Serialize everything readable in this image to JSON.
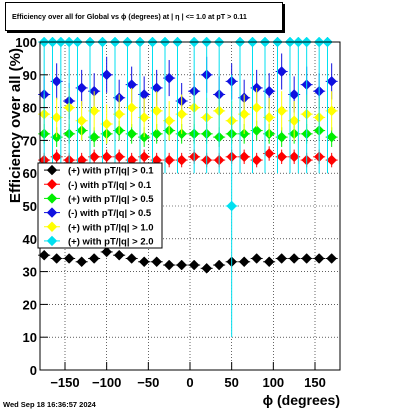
{
  "footer_timestamp": "Wed Sep 18 16:36:57 2024",
  "chart_data": {
    "type": "scatter",
    "title": "Efficiency over all for Global vs ϕ (degrees) at | η | <= 1.0 at pT > 0.11",
    "xlabel": "ϕ (degrees)",
    "ylabel": "Efficiency over all (%)",
    "xlim": [
      -180,
      180
    ],
    "ylim": [
      0,
      100
    ],
    "xticks": [
      -150,
      -100,
      -50,
      0,
      50,
      100,
      150
    ],
    "xtick_labels": [
      "−150",
      "−100",
      "−50",
      "0",
      "50",
      "100",
      "150"
    ],
    "yticks": [
      0,
      10,
      20,
      30,
      40,
      50,
      60,
      70,
      80,
      90,
      100
    ],
    "grid": true,
    "legend_position": "center-left",
    "series": [
      {
        "name": "(+) with pT/|q| > 0.1",
        "color": "#000000",
        "marker": "diamond",
        "x": [
          -175,
          -160,
          -145,
          -130,
          -115,
          -100,
          -85,
          -70,
          -55,
          -40,
          -25,
          -10,
          5,
          20,
          35,
          50,
          65,
          80,
          95,
          110,
          125,
          140,
          155,
          170
        ],
        "y": [
          35,
          34,
          34,
          33,
          34,
          36,
          35,
          34,
          33,
          33,
          32,
          32,
          32,
          31,
          32,
          33,
          33,
          34,
          33,
          34,
          34,
          34,
          34,
          34
        ],
        "err": 1.3
      },
      {
        "name": "(-) with pT/|q| > 0.1",
        "color": "#ff0000",
        "marker": "diamond",
        "x": [
          -175,
          -160,
          -145,
          -130,
          -115,
          -100,
          -85,
          -70,
          -55,
          -40,
          -25,
          -10,
          5,
          20,
          35,
          50,
          65,
          80,
          95,
          110,
          125,
          140,
          155,
          170
        ],
        "y": [
          64,
          65,
          64,
          64,
          65,
          65,
          65,
          64,
          65,
          64,
          64,
          64,
          65,
          64,
          64,
          65,
          65,
          64,
          66,
          65,
          65,
          64,
          65,
          64
        ],
        "err": 2.2
      },
      {
        "name": "(+) with pT/|q| > 0.5",
        "color": "#00ee00",
        "marker": "diamond",
        "x": [
          -175,
          -160,
          -145,
          -130,
          -115,
          -100,
          -85,
          -70,
          -55,
          -40,
          -25,
          -10,
          5,
          20,
          35,
          50,
          65,
          80,
          95,
          110,
          125,
          140,
          155,
          170
        ],
        "y": [
          72,
          71,
          72,
          73,
          71,
          72,
          73,
          72,
          71,
          72,
          73,
          72,
          72,
          72,
          71,
          72,
          72,
          73,
          72,
          71,
          72,
          72,
          73,
          71
        ],
        "err": 3.0
      },
      {
        "name": "(-) with pT/|q| > 0.5",
        "color": "#1010e0",
        "marker": "diamond",
        "x": [
          -175,
          -160,
          -145,
          -130,
          -115,
          -100,
          -85,
          -70,
          -55,
          -40,
          -25,
          -10,
          5,
          20,
          35,
          50,
          65,
          80,
          95,
          110,
          125,
          140,
          155,
          170
        ],
        "y": [
          84,
          88,
          82,
          86,
          85,
          90,
          83,
          87,
          84,
          86,
          89,
          82,
          85,
          90,
          84,
          88,
          83,
          86,
          85,
          91,
          84,
          87,
          85,
          88
        ],
        "err": 5.5
      },
      {
        "name": "(+) with pT/|q| > 1.0",
        "color": "#ffff00",
        "marker": "diamond",
        "x": [
          -175,
          -160,
          -145,
          -130,
          -115,
          -100,
          -85,
          -70,
          -55,
          -40,
          -25,
          -10,
          5,
          20,
          35,
          50,
          65,
          80,
          95,
          110,
          125,
          140,
          155,
          170
        ],
        "y": [
          78,
          77,
          80,
          76,
          79,
          75,
          78,
          80,
          77,
          79,
          76,
          78,
          80,
          77,
          79,
          76,
          78,
          80,
          77,
          79,
          76,
          78,
          77,
          79
        ],
        "err": 6.0
      },
      {
        "name": "(+) with pT/|q| > 2.0",
        "color": "#00e0f0",
        "marker": "diamond",
        "x": [
          -175,
          -165,
          -155,
          -145,
          -135,
          -120,
          -105,
          -90,
          -75,
          -60,
          -45,
          -30,
          -15,
          5,
          20,
          35,
          50,
          60,
          75,
          90,
          105,
          120,
          130,
          140,
          155,
          165
        ],
        "y": [
          100,
          100,
          100,
          100,
          100,
          100,
          100,
          100,
          100,
          100,
          100,
          100,
          100,
          100,
          100,
          100,
          50,
          100,
          100,
          100,
          100,
          100,
          100,
          100,
          100,
          100
        ],
        "err": 40
      }
    ]
  }
}
